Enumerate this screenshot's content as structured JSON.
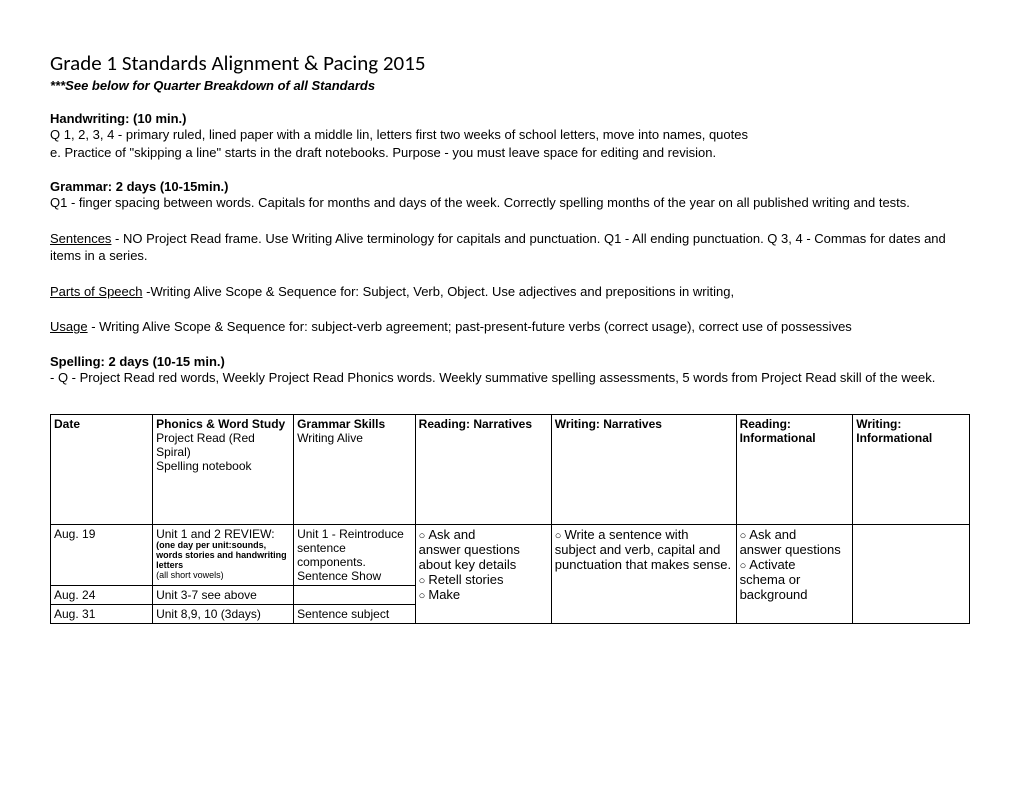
{
  "title": "Grade 1 Standards Alignment & Pacing 2015",
  "subtitle": "***See below for Quarter Breakdown of all Standards",
  "sections": {
    "handwriting": {
      "header": "Handwriting: (10 min.)",
      "line1": "Q 1, 2, 3, 4 -  primary ruled, lined paper with a middle lin, letters first two weeks of school letters, move into names, quotes",
      "line2": "e.  Practice of \"skipping a line\" starts in the draft notebooks.  Purpose - you must leave space for editing and revision."
    },
    "grammar": {
      "header": "Grammar: 2 days (10-15min.)",
      "line1": "Q1 - finger spacing between words.  Capitals for months and days of the week.  Correctly spelling months of the year on all published writing and tests."
    },
    "sentences": {
      "label": "Sentences",
      "text": " - NO Project Read frame.  Use Writing Alive terminology for capitals and punctuation.  Q1 - All ending punctuation.   Q 3, 4 - Commas for dates and items in a series."
    },
    "parts": {
      "label": "Parts of Speech",
      "text": " -Writing Alive Scope & Sequence for:   Subject, Verb, Object.  Use adjectives and prepositions in writing,"
    },
    "usage": {
      "label": "Usage",
      "text": " - Writing Alive Scope & Sequence for:  subject-verb agreement; past-present-future verbs (correct usage), correct use of possessives"
    },
    "spelling": {
      "header": "Spelling: 2 days (10-15 min.)",
      "line1": "- Q - Project Read red words, Weekly Project Read Phonics words.  Weekly summative spelling assessments, 5 words from Project Read skill of the week."
    }
  },
  "headers": {
    "date": "Date",
    "phonics_l1": "Phonics & Word Study",
    "phonics_l2": "Project Read (Red Spiral)",
    "phonics_l3": "Spelling notebook",
    "grammar_l1": "Grammar Skills",
    "grammar_l2": "Writing Alive",
    "reading_nar": "Reading: Narratives",
    "writing_nar": "Writing: Narratives",
    "reading_inf": "Reading: Informational",
    "writing_inf": "Writing: Informational"
  },
  "rows": {
    "r1": {
      "date": "Aug. 19",
      "phonics_l1": "Unit 1 and 2 REVIEW:",
      "phonics_l2": "(one day per unit:sounds, words stories and handwriting letters",
      "phonics_l3": "(all short vowels)",
      "grammar": "Unit 1 - Reintroduce sentence components. Sentence Show",
      "reading_nar_b1": "Ask and",
      "reading_nar_l2": "answer questions about key details",
      "reading_nar_b2": "Retell stories",
      "reading_nar_b3": "Make",
      "writing_nar_b1": "Write a sentence with",
      "writing_nar_l2": "subject and verb, capital and punctuation that makes sense.",
      "reading_inf_b1": "Ask and",
      "reading_inf_l2": "answer questions",
      "reading_inf_b2": "Activate",
      "reading_inf_l3": "schema or background"
    },
    "r2": {
      "date": "Aug. 24",
      "phonics": "Unit 3-7 see above"
    },
    "r3": {
      "date": "Aug. 31",
      "phonics": "Unit 8,9, 10 (3days)",
      "grammar": "Sentence subject"
    }
  }
}
